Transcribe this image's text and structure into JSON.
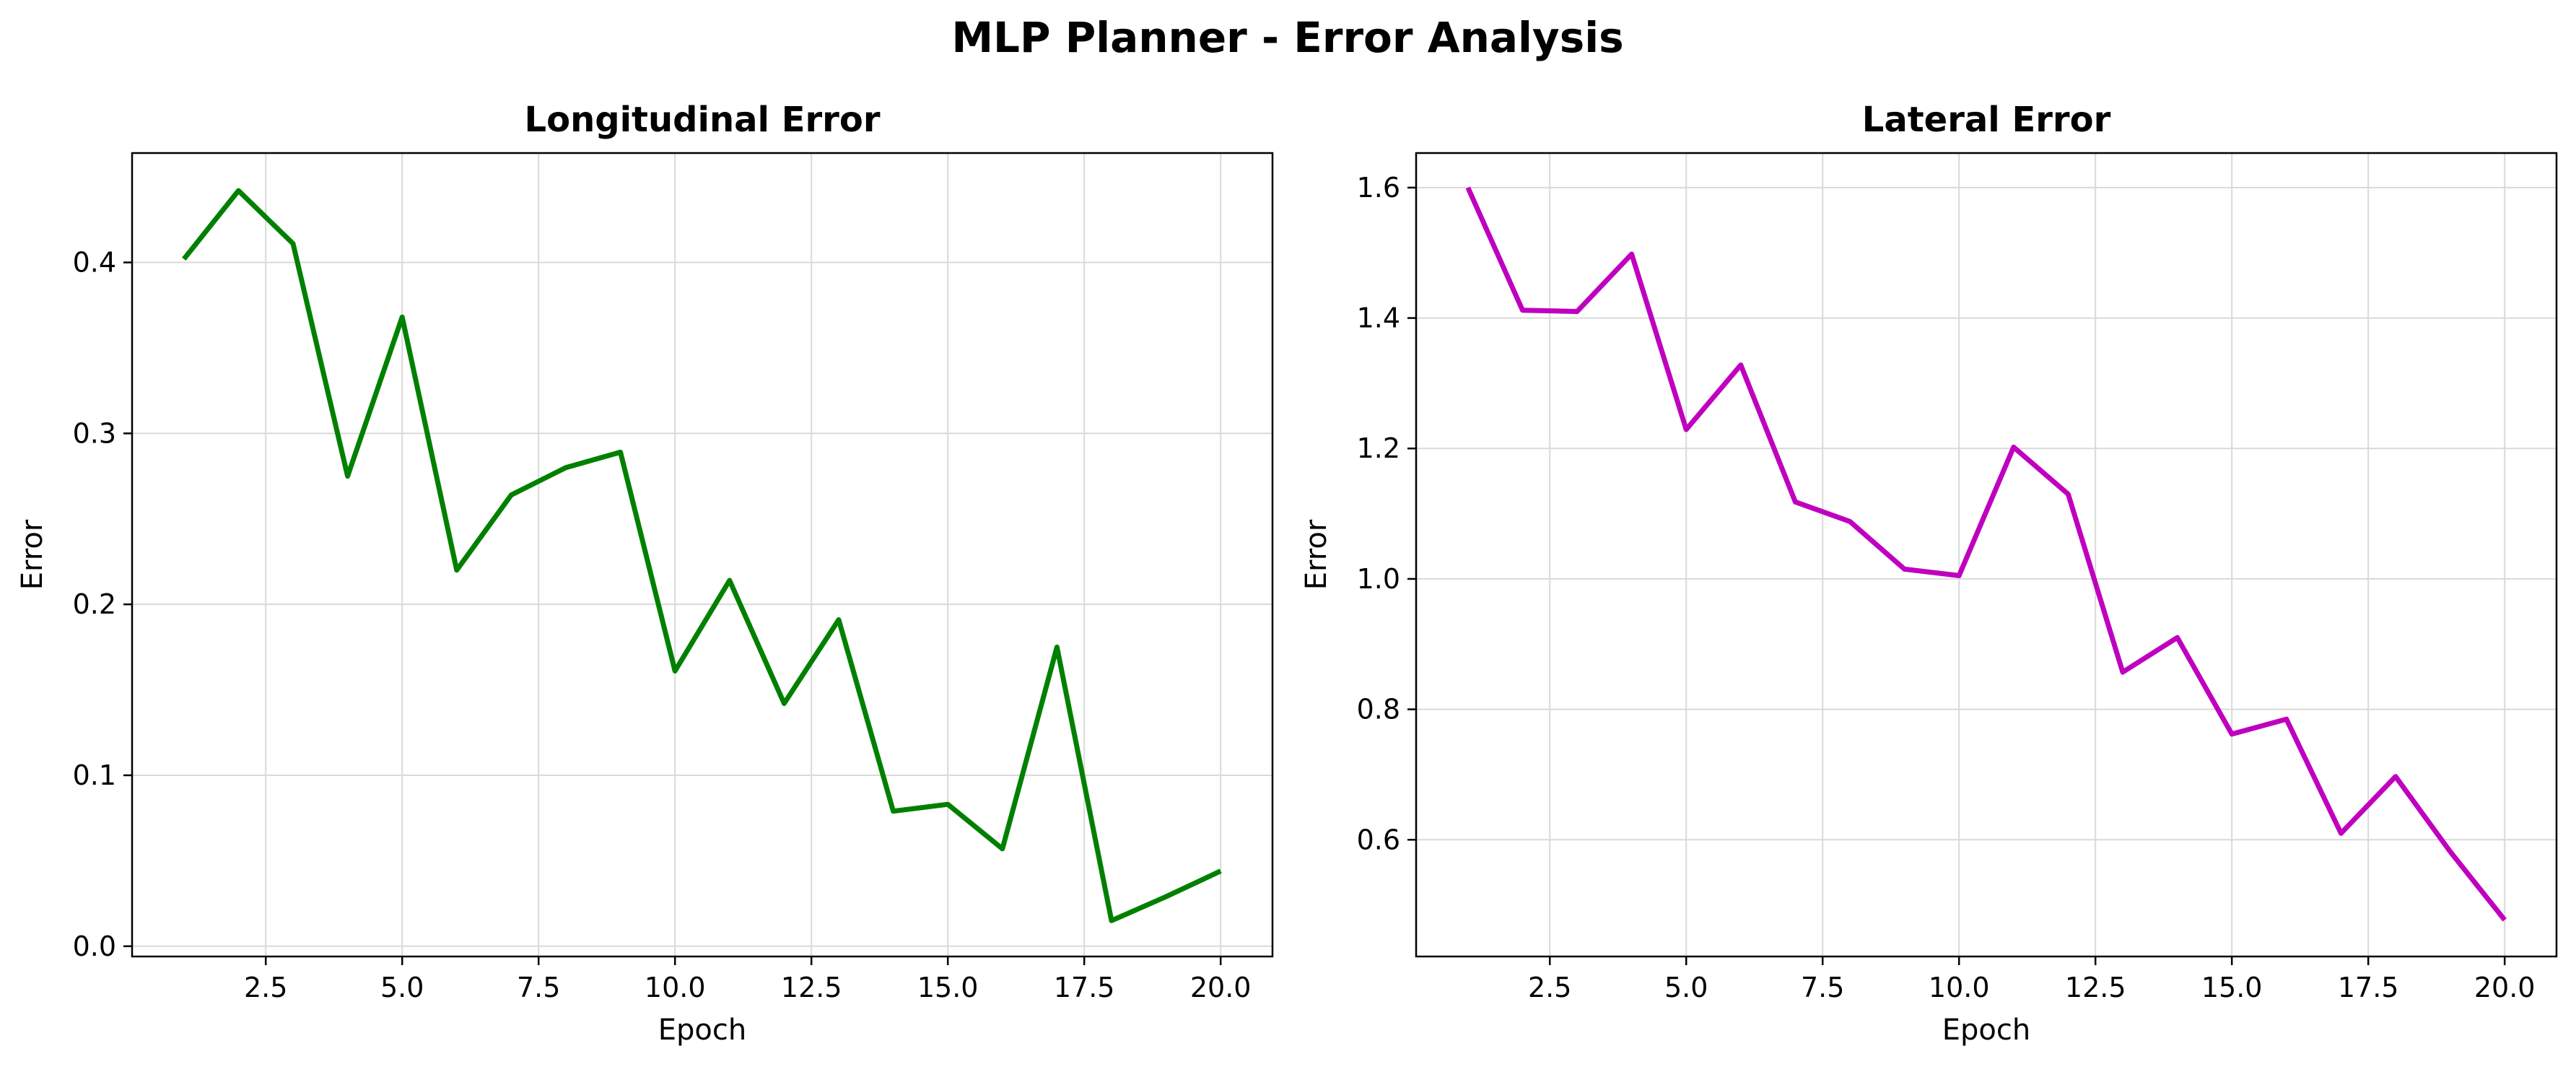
{
  "figure": {
    "title": "MLP Planner - Error Analysis"
  },
  "chart_data": [
    {
      "type": "line",
      "title": "Longitudinal Error",
      "xlabel": "Epoch",
      "ylabel": "Error",
      "xlim": [
        0.05,
        20.95
      ],
      "ylim": [
        -0.006,
        0.464
      ],
      "xticks": [
        2.5,
        5.0,
        7.5,
        10.0,
        12.5,
        15.0,
        17.5,
        20.0
      ],
      "xtick_labels": [
        "2.5",
        "5.0",
        "7.5",
        "10.0",
        "12.5",
        "15.0",
        "17.5",
        "20.0"
      ],
      "yticks": [
        0.0,
        0.1,
        0.2,
        0.3,
        0.4
      ],
      "ytick_labels": [
        "0.0",
        "0.1",
        "0.2",
        "0.3",
        "0.4"
      ],
      "grid": true,
      "series": [
        {
          "color": "#008000",
          "x": [
            1,
            2,
            3,
            4,
            5,
            6,
            7,
            8,
            9,
            10,
            11,
            12,
            13,
            14,
            15,
            16,
            17,
            18,
            19,
            20
          ],
          "y": [
            0.402,
            0.442,
            0.411,
            0.275,
            0.368,
            0.22,
            0.264,
            0.28,
            0.289,
            0.161,
            0.214,
            0.142,
            0.191,
            0.079,
            0.083,
            0.057,
            0.175,
            0.015,
            0.029,
            0.044
          ]
        }
      ]
    },
    {
      "type": "line",
      "title": "Lateral Error",
      "xlabel": "Epoch",
      "ylabel": "Error",
      "xlim": [
        0.05,
        20.95
      ],
      "ylim": [
        0.421,
        1.653
      ],
      "xticks": [
        2.5,
        5.0,
        7.5,
        10.0,
        12.5,
        15.0,
        17.5,
        20.0
      ],
      "xtick_labels": [
        "2.5",
        "5.0",
        "7.5",
        "10.0",
        "12.5",
        "15.0",
        "17.5",
        "20.0"
      ],
      "yticks": [
        0.6,
        0.8,
        1.0,
        1.2,
        1.4,
        1.6
      ],
      "ytick_labels": [
        "0.6",
        "0.8",
        "1.0",
        "1.2",
        "1.4",
        "1.6"
      ],
      "grid": true,
      "series": [
        {
          "color": "#bf00bf",
          "x": [
            1,
            2,
            3,
            4,
            5,
            6,
            7,
            8,
            9,
            10,
            11,
            12,
            13,
            14,
            15,
            16,
            17,
            18,
            19,
            20
          ],
          "y": [
            1.6,
            1.412,
            1.41,
            1.498,
            1.229,
            1.328,
            1.118,
            1.088,
            1.015,
            1.005,
            1.202,
            1.13,
            0.857,
            0.91,
            0.762,
            0.785,
            0.61,
            0.697,
            0.582,
            0.477
          ]
        }
      ]
    }
  ]
}
